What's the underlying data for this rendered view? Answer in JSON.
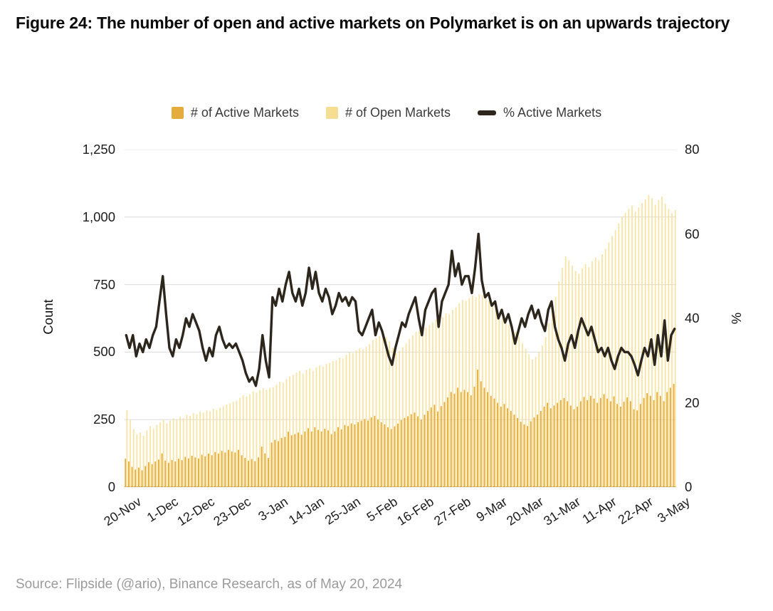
{
  "title": "Figure 24: The number of open and active markets on Polymarket is on an upwards trajectory",
  "source": "Source: Flipside (@ario), Binance Research, as of May 20, 2024",
  "legend": [
    {
      "label": "# of Active Markets",
      "color": "#E3AC3C"
    },
    {
      "label": "# of Open Markets",
      "color": "#F5DE92"
    },
    {
      "label": "% Active Markets",
      "color": "#2D261C"
    }
  ],
  "chart_data": {
    "type": "bar",
    "note": "Grouped daily bars (active + open markets, left axis Count) with overlaid line (% active, right axis). Dates run daily from 20-Nov to 3-May, labeled every 11 days.",
    "x_tick_labels": [
      "20-Nov",
      "1-Dec",
      "12-Dec",
      "23-Dec",
      "3-Jan",
      "14-Jan",
      "25-Jan",
      "5-Feb",
      "16-Feb",
      "27-Feb",
      "9-Mar",
      "20-Mar",
      "31-Mar",
      "11-Apr",
      "22-Apr",
      "3-May"
    ],
    "x_tick_every": 11,
    "y_left": {
      "label": "Count",
      "max": 1250,
      "ticks": [
        0,
        250,
        500,
        750,
        1000,
        1250
      ],
      "tick_labels": [
        "0",
        "250",
        "500",
        "750",
        "1,000",
        "1,250"
      ]
    },
    "y_right": {
      "label": "%",
      "max": 80,
      "ticks": [
        0,
        20,
        40,
        60,
        80
      ],
      "tick_labels": [
        "0",
        "20",
        "40",
        "60",
        "80"
      ]
    },
    "grid": "horizontal",
    "series": [
      {
        "name": "# of Active Markets",
        "type": "bar",
        "axis": "left",
        "color": "#E3AC3C",
        "values": [
          105,
          95,
          75,
          65,
          72,
          62,
          78,
          92,
          85,
          95,
          102,
          125,
          98,
          90,
          100,
          95,
          105,
          100,
          112,
          106,
          116,
          110,
          106,
          120,
          114,
          124,
          118,
          130,
          124,
          134,
          128,
          138,
          132,
          128,
          138,
          118,
          108,
          98,
          104,
          96,
          110,
          150,
          125,
          108,
          165,
          175,
          170,
          182,
          186,
          205,
          192,
          196,
          202,
          194,
          206,
          218,
          206,
          222,
          212,
          206,
          216,
          210,
          196,
          206,
          222,
          214,
          230,
          226,
          236,
          232,
          240,
          246,
          252,
          246,
          258,
          264,
          250,
          240,
          232,
          222,
          215,
          225,
          235,
          248,
          256,
          262,
          270,
          276,
          262,
          250,
          268,
          282,
          295,
          305,
          280,
          300,
          315,
          332,
          352,
          346,
          368,
          352,
          360,
          352,
          340,
          372,
          435,
          392,
          368,
          352,
          338,
          328,
          312,
          298,
          308,
          292,
          282,
          268,
          256,
          242,
          232,
          226,
          244,
          258,
          268,
          282,
          298,
          312,
          292,
          302,
          312,
          322,
          330,
          318,
          302,
          288,
          298,
          318,
          334,
          322,
          338,
          328,
          312,
          330,
          344,
          328,
          318,
          336,
          308,
          298,
          316,
          332,
          318,
          288,
          284,
          308,
          330,
          348,
          338,
          322,
          352,
          338,
          318,
          352,
          368,
          382
        ]
      },
      {
        "name": "# of Open Markets",
        "type": "bar",
        "axis": "left",
        "color": "#F5DE92",
        "values": [
          285,
          248,
          215,
          196,
          202,
          190,
          210,
          226,
          216,
          230,
          240,
          250,
          236,
          246,
          254,
          250,
          260,
          256,
          268,
          264,
          274,
          270,
          280,
          276,
          284,
          280,
          290,
          286,
          294,
          300,
          306,
          310,
          316,
          320,
          330,
          340,
          336,
          344,
          354,
          350,
          360,
          366,
          360,
          368,
          370,
          380,
          390,
          386,
          400,
          410,
          416,
          424,
          430,
          420,
          434,
          440,
          430,
          444,
          450,
          446,
          456,
          460,
          466,
          470,
          480,
          476,
          490,
          500,
          496,
          506,
          514,
          510,
          520,
          530,
          545,
          552,
          560,
          565,
          555,
          540,
          515,
          495,
          505,
          518,
          532,
          548,
          562,
          575,
          580,
          576,
          590,
          600,
          610,
          620,
          614,
          630,
          644,
          640,
          656,
          666,
          680,
          694,
          690,
          700,
          710,
          704,
          715,
          710,
          700,
          690,
          676,
          660,
          642,
          625,
          610,
          600,
          590,
          575,
          556,
          532,
          512,
          492,
          472,
          482,
          500,
          524,
          556,
          608,
          652,
          704,
          762,
          812,
          855,
          840,
          820,
          800,
          790,
          810,
          826,
          814,
          836,
          850,
          840,
          862,
          882,
          906,
          930,
          952,
          976,
          1000,
          1016,
          1030,
          1042,
          1020,
          1036,
          1052,
          1066,
          1082,
          1070,
          1046,
          1062,
          1076,
          1050,
          1030,
          1014,
          1026
        ]
      },
      {
        "name": "% Active Markets",
        "type": "line",
        "axis": "right",
        "color": "#2D261C",
        "values": [
          36,
          33,
          36,
          31,
          34,
          32,
          35,
          33,
          36,
          38,
          44,
          50,
          41,
          33,
          31,
          35,
          33,
          36,
          40,
          38,
          41,
          39,
          37,
          33,
          30,
          33,
          31,
          36,
          38,
          35,
          33,
          34,
          33,
          34,
          32,
          30,
          27,
          25,
          26,
          24,
          28,
          36,
          30,
          26,
          45,
          43,
          47,
          44,
          48,
          51,
          46,
          44,
          47,
          43,
          46,
          52,
          47,
          51,
          46,
          44,
          47,
          45,
          41,
          43,
          46,
          44,
          45,
          43,
          45,
          44,
          37,
          36,
          38,
          40,
          42,
          36,
          39,
          37,
          34,
          31,
          29,
          33,
          36,
          39,
          38,
          41,
          43,
          45,
          40,
          36,
          42,
          44,
          46,
          47,
          38,
          44,
          46,
          48,
          56,
          50,
          53,
          48,
          50,
          50,
          46,
          52,
          60,
          49,
          45,
          46,
          43,
          44,
          40,
          42,
          39,
          41,
          38,
          34,
          37,
          40,
          38,
          41,
          43,
          40,
          42,
          39,
          37,
          42,
          44,
          38,
          35,
          33,
          30,
          34,
          36,
          33,
          37,
          40,
          38,
          36,
          38,
          35,
          32,
          33,
          31,
          33,
          30,
          28,
          31,
          33,
          32,
          32,
          31,
          29,
          26.5,
          30,
          33,
          31,
          35,
          29,
          36,
          31,
          39.5,
          30,
          36,
          37.5
        ]
      }
    ]
  }
}
